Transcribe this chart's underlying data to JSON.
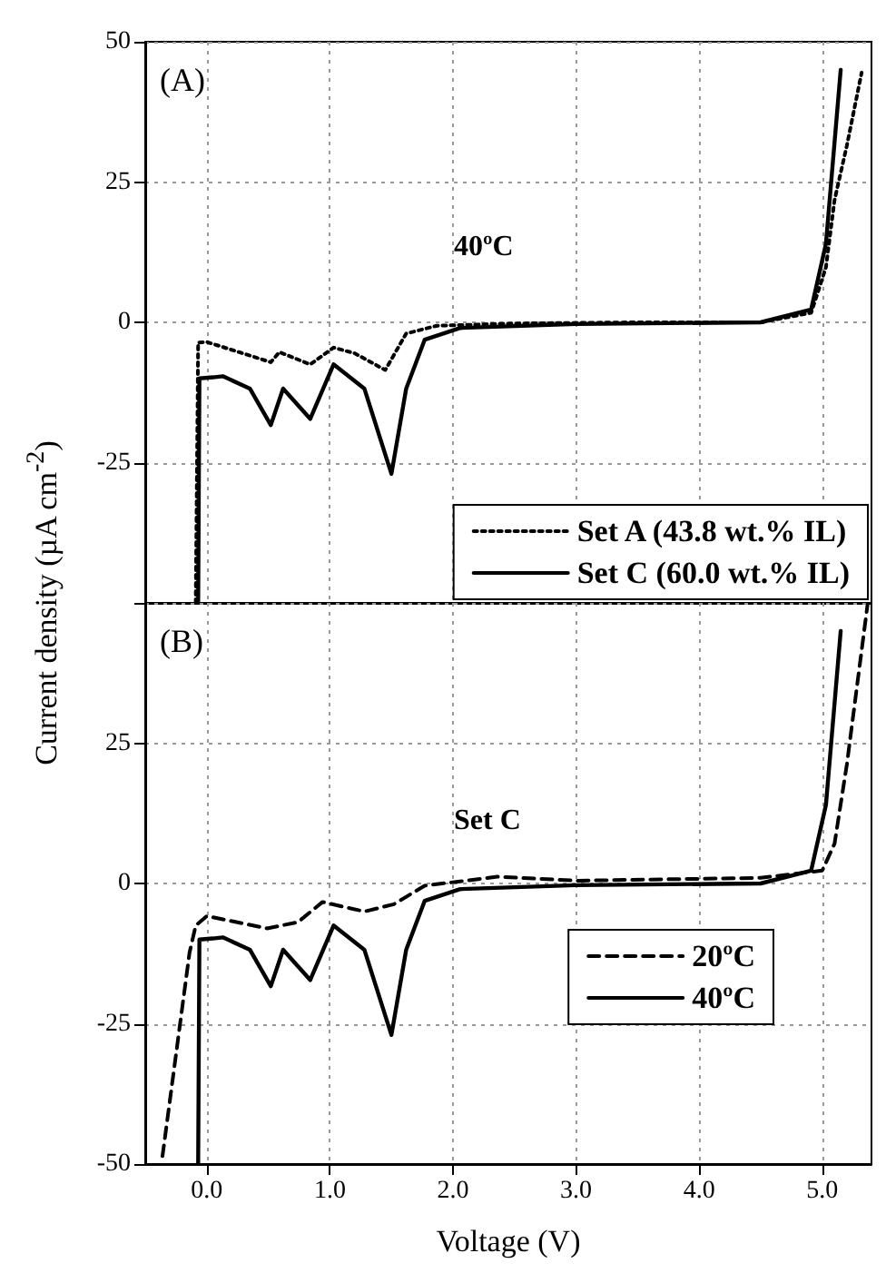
{
  "chart_data": [
    {
      "type": "line",
      "ylabel": "Current density (µA cm$^{-2}$)",
      "annotations": [
        "(A)",
        "40ºC"
      ],
      "xlim": [
        -0.5,
        5.4
      ],
      "xticks": [
        0,
        1,
        2,
        3,
        4,
        5
      ],
      "ylim": [
        -50,
        50
      ],
      "yticks": [
        {
          "value": -50,
          "label": null
        },
        -25,
        0,
        25,
        50
      ],
      "tick_labels": "y",
      "grid": true,
      "legend": "bottom right",
      "series": [
        {
          "name": "Set A (43.8 wt.% IL)",
          "color": "#000000",
          "line_style": "dotted",
          "x": [
            -0.09,
            -0.07,
            0.0,
            0.52,
            0.59,
            0.84,
            1.03,
            1.2,
            1.45,
            1.62,
            1.87,
            2.5,
            3.5,
            4.5,
            4.91,
            5.03,
            5.1,
            5.2,
            5.32
          ],
          "values": [
            -50,
            -3.6,
            -3.5,
            -7.1,
            -5.3,
            -7.5,
            -4.5,
            -5.5,
            -8.5,
            -2,
            -0.6,
            -0.2,
            0,
            0,
            1.7,
            9.8,
            21.8,
            31.5,
            44.5
          ]
        },
        {
          "name": "Set C (60.0 wt.% IL)",
          "color": "#000000",
          "line_style": "solid",
          "x": [
            -0.07,
            -0.06,
            0.05,
            0.13,
            0.35,
            0.52,
            0.62,
            0.84,
            1.03,
            1.28,
            1.5,
            1.62,
            1.77,
            2.06,
            3.0,
            4.5,
            4.91,
            5.03,
            5.15
          ],
          "values": [
            -50,
            -10,
            -9.8,
            -9.6,
            -11.8,
            -18.3,
            -11.8,
            -17.2,
            -7.5,
            -11.8,
            -27,
            -11.8,
            -3.1,
            -1,
            -0.3,
            0,
            2.3,
            14,
            45
          ]
        }
      ]
    },
    {
      "type": "line",
      "xlabel": "Voltage (V)",
      "annotations": [
        "(B)",
        "Set C"
      ],
      "xlim": [
        -0.5,
        5.4
      ],
      "xticks": [
        {
          "value": 0,
          "label": "0.0"
        },
        {
          "value": 1,
          "label": "1.0"
        },
        {
          "value": 2,
          "label": "2.0"
        },
        {
          "value": 3,
          "label": "3.0"
        },
        {
          "value": 4,
          "label": "4.0"
        },
        {
          "value": 5,
          "label": "5.0"
        }
      ],
      "ylim": [
        -50,
        50
      ],
      "yticks": [
        -50,
        -25,
        0,
        25,
        {
          "value": 50,
          "label": null
        }
      ],
      "grid": true,
      "legend": "right",
      "series": [
        {
          "name": "20ºC",
          "color": "#000000",
          "line_style": "dashed",
          "x": [
            -0.36,
            -0.14,
            -0.09,
            0.0,
            0.49,
            0.74,
            0.94,
            1.28,
            1.52,
            1.77,
            2.36,
            3.0,
            4.5,
            5.0,
            5.1,
            5.2,
            5.37
          ],
          "values": [
            -48.6,
            -12.3,
            -7.5,
            -5.8,
            -8,
            -6.9,
            -3.3,
            -5,
            -3.7,
            -0.4,
            1.2,
            0.5,
            1,
            2.3,
            7.1,
            21.2,
            50
          ]
        },
        {
          "name": "40ºC",
          "color": "#000000",
          "line_style": "solid",
          "x": [
            -0.07,
            -0.06,
            0.05,
            0.13,
            0.35,
            0.52,
            0.62,
            0.84,
            1.03,
            1.28,
            1.5,
            1.62,
            1.77,
            2.06,
            3.0,
            4.5,
            4.91,
            5.03,
            5.15
          ],
          "values": [
            -50,
            -10,
            -9.8,
            -9.6,
            -11.8,
            -18.3,
            -11.8,
            -17.2,
            -7.5,
            -11.8,
            -27,
            -11.8,
            -3.1,
            -1,
            -0.3,
            0,
            2.3,
            14,
            45
          ]
        }
      ]
    }
  ]
}
